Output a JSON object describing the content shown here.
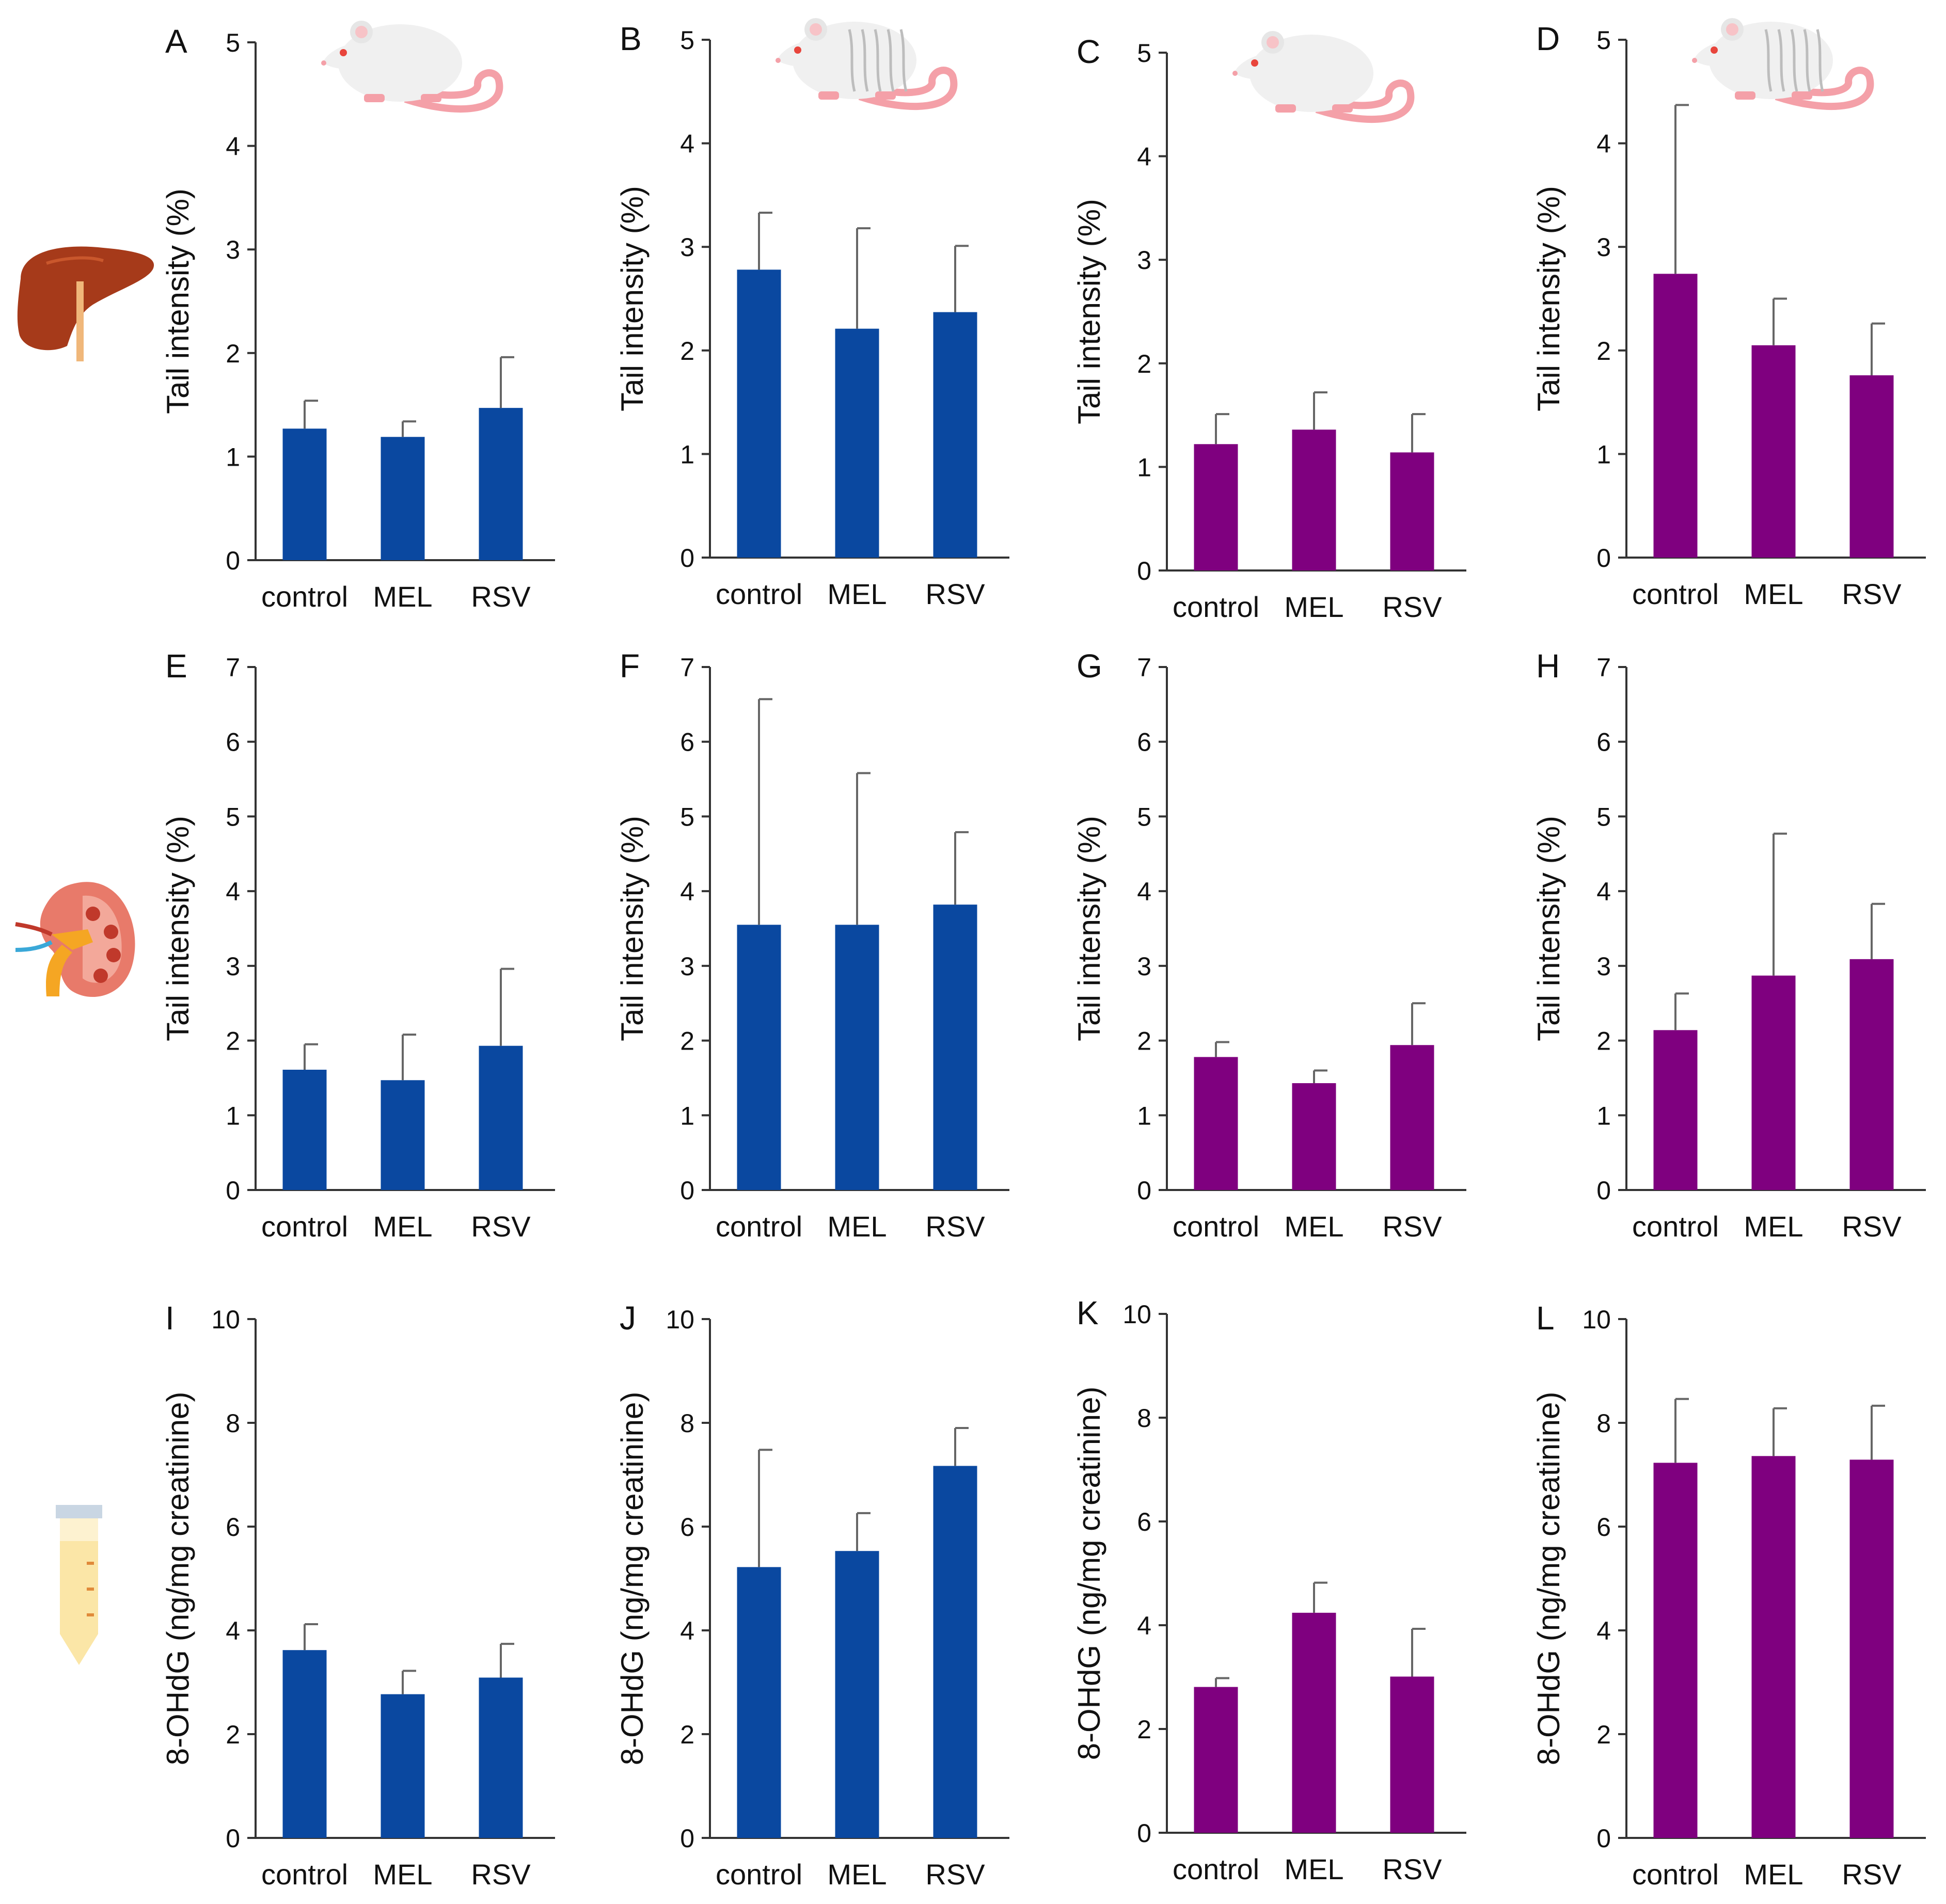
{
  "colors": {
    "young": "#0a48a0",
    "old": "#7f007f",
    "axis": "#333333",
    "error": "#666666"
  },
  "chart_data": [
    {
      "id": "A",
      "type": "bar",
      "panel_label": "A",
      "row": "liver",
      "group": "young",
      "ylabel": "Tail intensity (%)",
      "ylim": [
        0,
        5
      ],
      "yticks": [
        0,
        1,
        2,
        3,
        4,
        5
      ],
      "categories": [
        "control",
        "MEL",
        "RSV"
      ],
      "values": [
        1.27,
        1.19,
        1.47
      ],
      "errors": [
        0.27,
        0.15,
        0.49
      ],
      "icon": "rat-icon"
    },
    {
      "id": "B",
      "type": "bar",
      "panel_label": "B",
      "row": "liver",
      "group": "old",
      "ylabel": "Tail intensity (%)",
      "ylim": [
        0,
        5
      ],
      "yticks": [
        0,
        1,
        2,
        3,
        4,
        5
      ],
      "categories": [
        "control",
        "MEL",
        "RSV"
      ],
      "values": [
        2.78,
        2.21,
        2.37
      ],
      "errors": [
        0.55,
        0.97,
        0.64
      ],
      "icon": "striped-rat-icon"
    },
    {
      "id": "C",
      "type": "bar",
      "panel_label": "C",
      "row": "liver",
      "group": "young",
      "ylabel": "Tail intensity (%)",
      "ylim": [
        0,
        5
      ],
      "yticks": [
        0,
        1,
        2,
        3,
        4,
        5
      ],
      "categories": [
        "control",
        "MEL",
        "RSV"
      ],
      "values": [
        1.22,
        1.36,
        1.14
      ],
      "errors": [
        0.29,
        0.36,
        0.37
      ],
      "icon": "rat-icon"
    },
    {
      "id": "D",
      "type": "bar",
      "panel_label": "D",
      "row": "liver",
      "group": "old",
      "ylabel": "Tail intensity (%)",
      "ylim": [
        0,
        5
      ],
      "yticks": [
        0,
        1,
        2,
        3,
        4,
        5
      ],
      "categories": [
        "control",
        "MEL",
        "RSV"
      ],
      "values": [
        2.74,
        2.05,
        1.76
      ],
      "errors": [
        1.63,
        0.45,
        0.5
      ],
      "icon": "striped-rat-icon"
    },
    {
      "id": "E",
      "type": "bar",
      "panel_label": "E",
      "row": "kidney",
      "ylabel": "Tail intensity (%)",
      "ylim": [
        0,
        7
      ],
      "yticks": [
        0,
        1,
        2,
        3,
        4,
        5,
        6,
        7
      ],
      "categories": [
        "control",
        "MEL",
        "RSV"
      ],
      "values": [
        1.61,
        1.47,
        1.93
      ],
      "errors": [
        0.34,
        0.61,
        1.03
      ]
    },
    {
      "id": "F",
      "type": "bar",
      "panel_label": "F",
      "row": "kidney",
      "ylabel": "Tail intensity (%)",
      "ylim": [
        0,
        7
      ],
      "yticks": [
        0,
        1,
        2,
        3,
        4,
        5,
        6,
        7
      ],
      "categories": [
        "control",
        "MEL",
        "RSV"
      ],
      "values": [
        3.55,
        3.55,
        3.82
      ],
      "errors": [
        3.02,
        2.03,
        0.97
      ]
    },
    {
      "id": "G",
      "type": "bar",
      "panel_label": "G",
      "row": "kidney",
      "ylabel": "Tail intensity (%)",
      "ylim": [
        0,
        7
      ],
      "yticks": [
        0,
        1,
        2,
        3,
        4,
        5,
        6,
        7
      ],
      "categories": [
        "control",
        "MEL",
        "RSV"
      ],
      "values": [
        1.78,
        1.43,
        1.94
      ],
      "errors": [
        0.2,
        0.17,
        0.56
      ]
    },
    {
      "id": "H",
      "type": "bar",
      "panel_label": "H",
      "row": "kidney",
      "ylabel": "Tail intensity (%)",
      "ylim": [
        0,
        7
      ],
      "yticks": [
        0,
        1,
        2,
        3,
        4,
        5,
        6,
        7
      ],
      "categories": [
        "control",
        "MEL",
        "RSV"
      ],
      "values": [
        2.14,
        2.87,
        3.09
      ],
      "errors": [
        0.49,
        1.9,
        0.74
      ]
    },
    {
      "id": "I",
      "type": "bar",
      "panel_label": "I",
      "row": "urine",
      "ylabel": "8-OHdG (ng/mg creatinine)",
      "ylim": [
        0,
        10
      ],
      "yticks": [
        0,
        2,
        4,
        6,
        8,
        10
      ],
      "categories": [
        "control",
        "MEL",
        "RSV"
      ],
      "values": [
        3.62,
        2.77,
        3.09
      ],
      "errors": [
        0.5,
        0.45,
        0.65
      ]
    },
    {
      "id": "J",
      "type": "bar",
      "panel_label": "J",
      "row": "urine",
      "ylabel": "8-OHdG (ng/mg creatinine)",
      "ylim": [
        0,
        10
      ],
      "yticks": [
        0,
        2,
        4,
        6,
        8,
        10
      ],
      "categories": [
        "control",
        "MEL",
        "RSV"
      ],
      "values": [
        5.22,
        5.53,
        7.17
      ],
      "errors": [
        2.26,
        0.73,
        0.73
      ]
    },
    {
      "id": "K",
      "type": "bar",
      "panel_label": "K",
      "row": "urine",
      "ylabel": "8-OHdG (ng/mg creatinine)",
      "ylim": [
        0,
        10
      ],
      "yticks": [
        0,
        2,
        4,
        6,
        8,
        10
      ],
      "categories": [
        "control",
        "MEL",
        "RSV"
      ],
      "values": [
        2.81,
        4.24,
        3.01
      ],
      "errors": [
        0.17,
        0.58,
        0.92
      ]
    },
    {
      "id": "L",
      "type": "bar",
      "panel_label": "L",
      "row": "urine",
      "ylabel": "8-OHdG (ng/mg creatinine)",
      "ylim": [
        0,
        10
      ],
      "yticks": [
        0,
        2,
        4,
        6,
        8,
        10
      ],
      "categories": [
        "control",
        "MEL",
        "RSV"
      ],
      "values": [
        7.23,
        7.36,
        7.29
      ],
      "errors": [
        1.23,
        0.92,
        1.04
      ]
    }
  ],
  "row_icons": [
    "liver-icon",
    "kidney-icon",
    "urine-tube-icon"
  ]
}
